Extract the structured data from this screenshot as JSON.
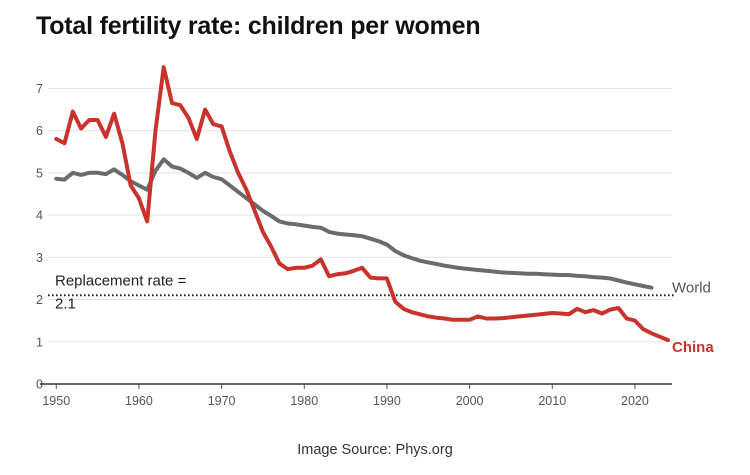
{
  "chart_data": {
    "type": "line",
    "title": "Total fertility rate: children per women",
    "xlabel": "",
    "ylabel": "",
    "xlim": [
      1949,
      2024
    ],
    "ylim": [
      0,
      7.6
    ],
    "x_ticks": [
      1950,
      1960,
      1970,
      1980,
      1990,
      2000,
      2010,
      2020
    ],
    "y_ticks": [
      0,
      1,
      2,
      3,
      4,
      5,
      6,
      7
    ],
    "grid": true,
    "reference_line": {
      "value": 2.1,
      "label_line1": "Replacement rate =",
      "label_line2": "2.1"
    },
    "series": [
      {
        "name": "World",
        "color": "#6b6b6b",
        "points": [
          [
            1950,
            4.86
          ],
          [
            1951,
            4.84
          ],
          [
            1952,
            5.0
          ],
          [
            1953,
            4.95
          ],
          [
            1954,
            5.0
          ],
          [
            1955,
            5.0
          ],
          [
            1956,
            4.97
          ],
          [
            1957,
            5.08
          ],
          [
            1958,
            4.95
          ],
          [
            1959,
            4.8
          ],
          [
            1960,
            4.7
          ],
          [
            1961,
            4.6
          ],
          [
            1962,
            5.05
          ],
          [
            1963,
            5.32
          ],
          [
            1964,
            5.15
          ],
          [
            1965,
            5.1
          ],
          [
            1966,
            5.0
          ],
          [
            1967,
            4.88
          ],
          [
            1968,
            5.0
          ],
          [
            1969,
            4.9
          ],
          [
            1970,
            4.85
          ],
          [
            1971,
            4.7
          ],
          [
            1972,
            4.55
          ],
          [
            1973,
            4.4
          ],
          [
            1974,
            4.25
          ],
          [
            1975,
            4.1
          ],
          [
            1976,
            3.98
          ],
          [
            1977,
            3.85
          ],
          [
            1978,
            3.8
          ],
          [
            1979,
            3.78
          ],
          [
            1980,
            3.75
          ],
          [
            1981,
            3.72
          ],
          [
            1982,
            3.7
          ],
          [
            1983,
            3.6
          ],
          [
            1984,
            3.56
          ],
          [
            1985,
            3.54
          ],
          [
            1986,
            3.52
          ],
          [
            1987,
            3.5
          ],
          [
            1988,
            3.44
          ],
          [
            1989,
            3.38
          ],
          [
            1990,
            3.3
          ],
          [
            1991,
            3.15
          ],
          [
            1992,
            3.05
          ],
          [
            1993,
            2.98
          ],
          [
            1994,
            2.92
          ],
          [
            1995,
            2.88
          ],
          [
            1996,
            2.84
          ],
          [
            1997,
            2.8
          ],
          [
            1998,
            2.77
          ],
          [
            1999,
            2.74
          ],
          [
            2000,
            2.72
          ],
          [
            2001,
            2.7
          ],
          [
            2002,
            2.68
          ],
          [
            2003,
            2.66
          ],
          [
            2004,
            2.64
          ],
          [
            2005,
            2.63
          ],
          [
            2006,
            2.62
          ],
          [
            2007,
            2.61
          ],
          [
            2008,
            2.61
          ],
          [
            2009,
            2.6
          ],
          [
            2010,
            2.59
          ],
          [
            2011,
            2.58
          ],
          [
            2012,
            2.58
          ],
          [
            2013,
            2.56
          ],
          [
            2014,
            2.55
          ],
          [
            2015,
            2.53
          ],
          [
            2016,
            2.52
          ],
          [
            2017,
            2.5
          ],
          [
            2018,
            2.45
          ],
          [
            2019,
            2.4
          ],
          [
            2020,
            2.36
          ],
          [
            2021,
            2.32
          ],
          [
            2022,
            2.28
          ]
        ]
      },
      {
        "name": "China",
        "color": "#c9322d",
        "points": [
          [
            1950,
            5.8
          ],
          [
            1951,
            5.7
          ],
          [
            1952,
            6.45
          ],
          [
            1953,
            6.05
          ],
          [
            1954,
            6.25
          ],
          [
            1955,
            6.25
          ],
          [
            1956,
            5.85
          ],
          [
            1957,
            6.4
          ],
          [
            1958,
            5.7
          ],
          [
            1959,
            4.7
          ],
          [
            1960,
            4.4
          ],
          [
            1961,
            3.85
          ],
          [
            1962,
            6.0
          ],
          [
            1963,
            7.5
          ],
          [
            1964,
            6.65
          ],
          [
            1965,
            6.6
          ],
          [
            1966,
            6.3
          ],
          [
            1967,
            5.8
          ],
          [
            1968,
            6.5
          ],
          [
            1969,
            6.15
          ],
          [
            1970,
            6.1
          ],
          [
            1971,
            5.5
          ],
          [
            1972,
            5.0
          ],
          [
            1973,
            4.6
          ],
          [
            1974,
            4.1
          ],
          [
            1975,
            3.6
          ],
          [
            1976,
            3.25
          ],
          [
            1977,
            2.85
          ],
          [
            1978,
            2.72
          ],
          [
            1979,
            2.75
          ],
          [
            1980,
            2.75
          ],
          [
            1981,
            2.8
          ],
          [
            1982,
            2.95
          ],
          [
            1983,
            2.55
          ],
          [
            1984,
            2.6
          ],
          [
            1985,
            2.62
          ],
          [
            1986,
            2.68
          ],
          [
            1987,
            2.75
          ],
          [
            1988,
            2.52
          ],
          [
            1989,
            2.5
          ],
          [
            1990,
            2.5
          ],
          [
            1991,
            1.95
          ],
          [
            1992,
            1.78
          ],
          [
            1993,
            1.7
          ],
          [
            1994,
            1.65
          ],
          [
            1995,
            1.6
          ],
          [
            1996,
            1.57
          ],
          [
            1997,
            1.55
          ],
          [
            1998,
            1.52
          ],
          [
            1999,
            1.52
          ],
          [
            2000,
            1.52
          ],
          [
            2001,
            1.6
          ],
          [
            2002,
            1.55
          ],
          [
            2003,
            1.55
          ],
          [
            2004,
            1.56
          ],
          [
            2005,
            1.58
          ],
          [
            2006,
            1.6
          ],
          [
            2007,
            1.62
          ],
          [
            2008,
            1.64
          ],
          [
            2009,
            1.66
          ],
          [
            2010,
            1.68
          ],
          [
            2011,
            1.67
          ],
          [
            2012,
            1.65
          ],
          [
            2013,
            1.78
          ],
          [
            2014,
            1.7
          ],
          [
            2015,
            1.75
          ],
          [
            2016,
            1.67
          ],
          [
            2017,
            1.76
          ],
          [
            2018,
            1.8
          ],
          [
            2019,
            1.55
          ],
          [
            2020,
            1.5
          ],
          [
            2021,
            1.3
          ],
          [
            2022,
            1.2
          ],
          [
            2023,
            1.12
          ],
          [
            2024,
            1.04
          ]
        ]
      }
    ]
  },
  "footer": {
    "source": "Image Source: Phys.org"
  }
}
